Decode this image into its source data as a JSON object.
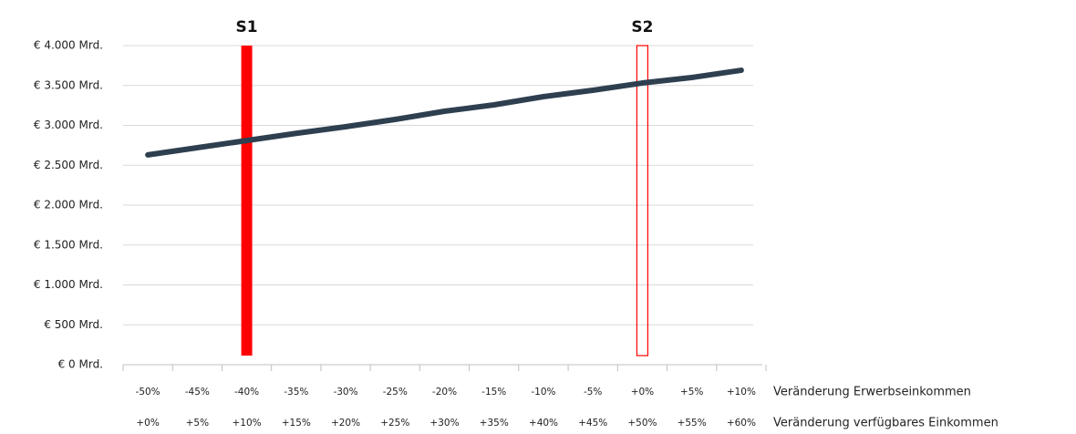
{
  "chart_data": {
    "type": "line",
    "categories": [
      "-50%",
      "-45%",
      "-40%",
      "-35%",
      "-30%",
      "-25%",
      "-20%",
      "-15%",
      "-10%",
      "-5%",
      "+0%",
      "+5%",
      "+10%"
    ],
    "categories2": [
      "+0%",
      "+5%",
      "+10%",
      "+15%",
      "+20%",
      "+25%",
      "+30%",
      "+35%",
      "+40%",
      "+45%",
      "+50%",
      "+55%",
      "+60%"
    ],
    "x_label": "Veränderung Erwerbseinkommen",
    "x2_label": "Veränderung verfügbares Einkommen",
    "series": [
      {
        "color": "#2e3f50",
        "values": [
          2630,
          2720,
          2810,
          2900,
          2983,
          3074,
          3177,
          3257,
          3360,
          3440,
          3531,
          3600,
          3691
        ]
      }
    ],
    "bars": [
      {
        "name": "S1",
        "category": "-40%",
        "value": 4000,
        "color": "#ff0000",
        "filled": true
      },
      {
        "name": "S2",
        "category": "+0%",
        "value": 4000,
        "color": "#ff0000",
        "filled": false
      }
    ],
    "ylim": [
      0,
      4000
    ],
    "yticks": [
      {
        "value": 0,
        "label": "€ 0 Mrd."
      },
      {
        "value": 500,
        "label": "€ 500 Mrd."
      },
      {
        "value": 1000,
        "label": "€ 1.000 Mrd."
      },
      {
        "value": 1500,
        "label": "€ 1.500 Mrd."
      },
      {
        "value": 2000,
        "label": "€ 2.000 Mrd."
      },
      {
        "value": 2500,
        "label": "€ 2.500 Mrd."
      },
      {
        "value": 3000,
        "label": "€ 3.000 Mrd."
      },
      {
        "value": 3500,
        "label": "€ 3.500 Mrd."
      },
      {
        "value": 4000,
        "label": "€ 4.000 Mrd."
      }
    ],
    "grid": true
  }
}
